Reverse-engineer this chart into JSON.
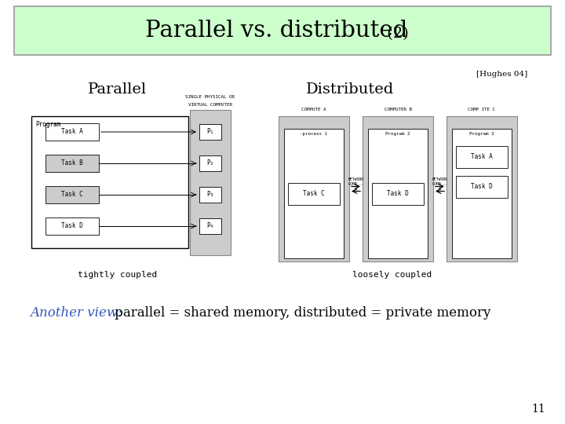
{
  "title_main": "Parallel vs. distributed",
  "title_suffix": " (2)",
  "title_bg": "#ccffcc",
  "title_border": "#999999",
  "hughes_ref": "[Hughes 04]",
  "label_parallel": "Parallel",
  "label_distributed": "Distributed",
  "label_tightly": "tightly coupled",
  "label_loosely": "loosely coupled",
  "another_view_blue": "Another view:",
  "another_view_black": " parallel = shared memory, distributed = private memory",
  "page_num": "11",
  "bg_color": "#ffffff",
  "gray_fill": "#cccccc",
  "white_fill": "#ffffff",
  "task_fill": "#eeeeee"
}
